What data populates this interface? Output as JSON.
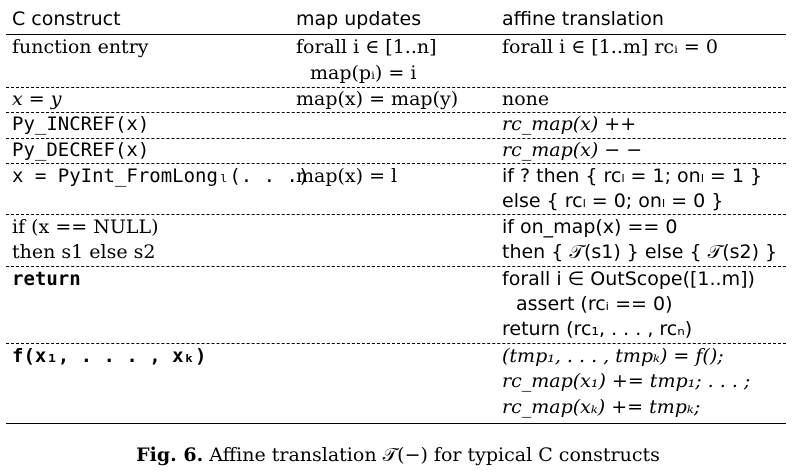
{
  "headers": {
    "col1": "C construct",
    "col2": "map updates",
    "col3": "affine translation"
  },
  "rows": {
    "r1": {
      "c1": "function entry",
      "c2a": "forall i ∈ [1..n]",
      "c2b": "map(pᵢ) = i",
      "c3": "forall i ∈ [1..m]  rcᵢ = 0"
    },
    "r2": {
      "c1": "x = y",
      "c2": "map(x) = map(y)",
      "c3": "none"
    },
    "r3": {
      "c1": "Py_INCREF(x)",
      "c3": "rc_map(x) ++"
    },
    "r4": {
      "c1": "Py_DECREF(x)",
      "c3": "rc_map(x) − −"
    },
    "r5": {
      "c1": "x = PyInt_FromLongₗ(. . .)",
      "c2": "map(x) = l",
      "c3a": "if ? then { rcₗ = 1;  onₗ = 1 }",
      "c3b": "else { rcₗ = 0;  onₗ = 0 }"
    },
    "r6": {
      "c1a": "if (x == NULL)",
      "c1b": "then s1 else s2",
      "c3a": "if  on_map(x) == 0",
      "c3b": "then { 𝒯(s1) } else { 𝒯(s2) }"
    },
    "r7": {
      "c1": "return",
      "c3a": "forall i ∈ OutScope([1..m])",
      "c3b": "assert (rcᵢ == 0)",
      "c3c": "return (rc₁, . . . , rcₙ)"
    },
    "r8": {
      "c1": "f(x₁, . . . , xₖ)",
      "c3a": "(tmp₁, . . . , tmpₖ) = f();",
      "c3b": "rc_map(x₁) += tmp₁;  . . . ;",
      "c3c": "rc_map(xₖ) += tmpₖ;"
    }
  },
  "caption": {
    "label": "Fig. 6.",
    "text": "Affine translation 𝒯(−) for typical C constructs"
  }
}
